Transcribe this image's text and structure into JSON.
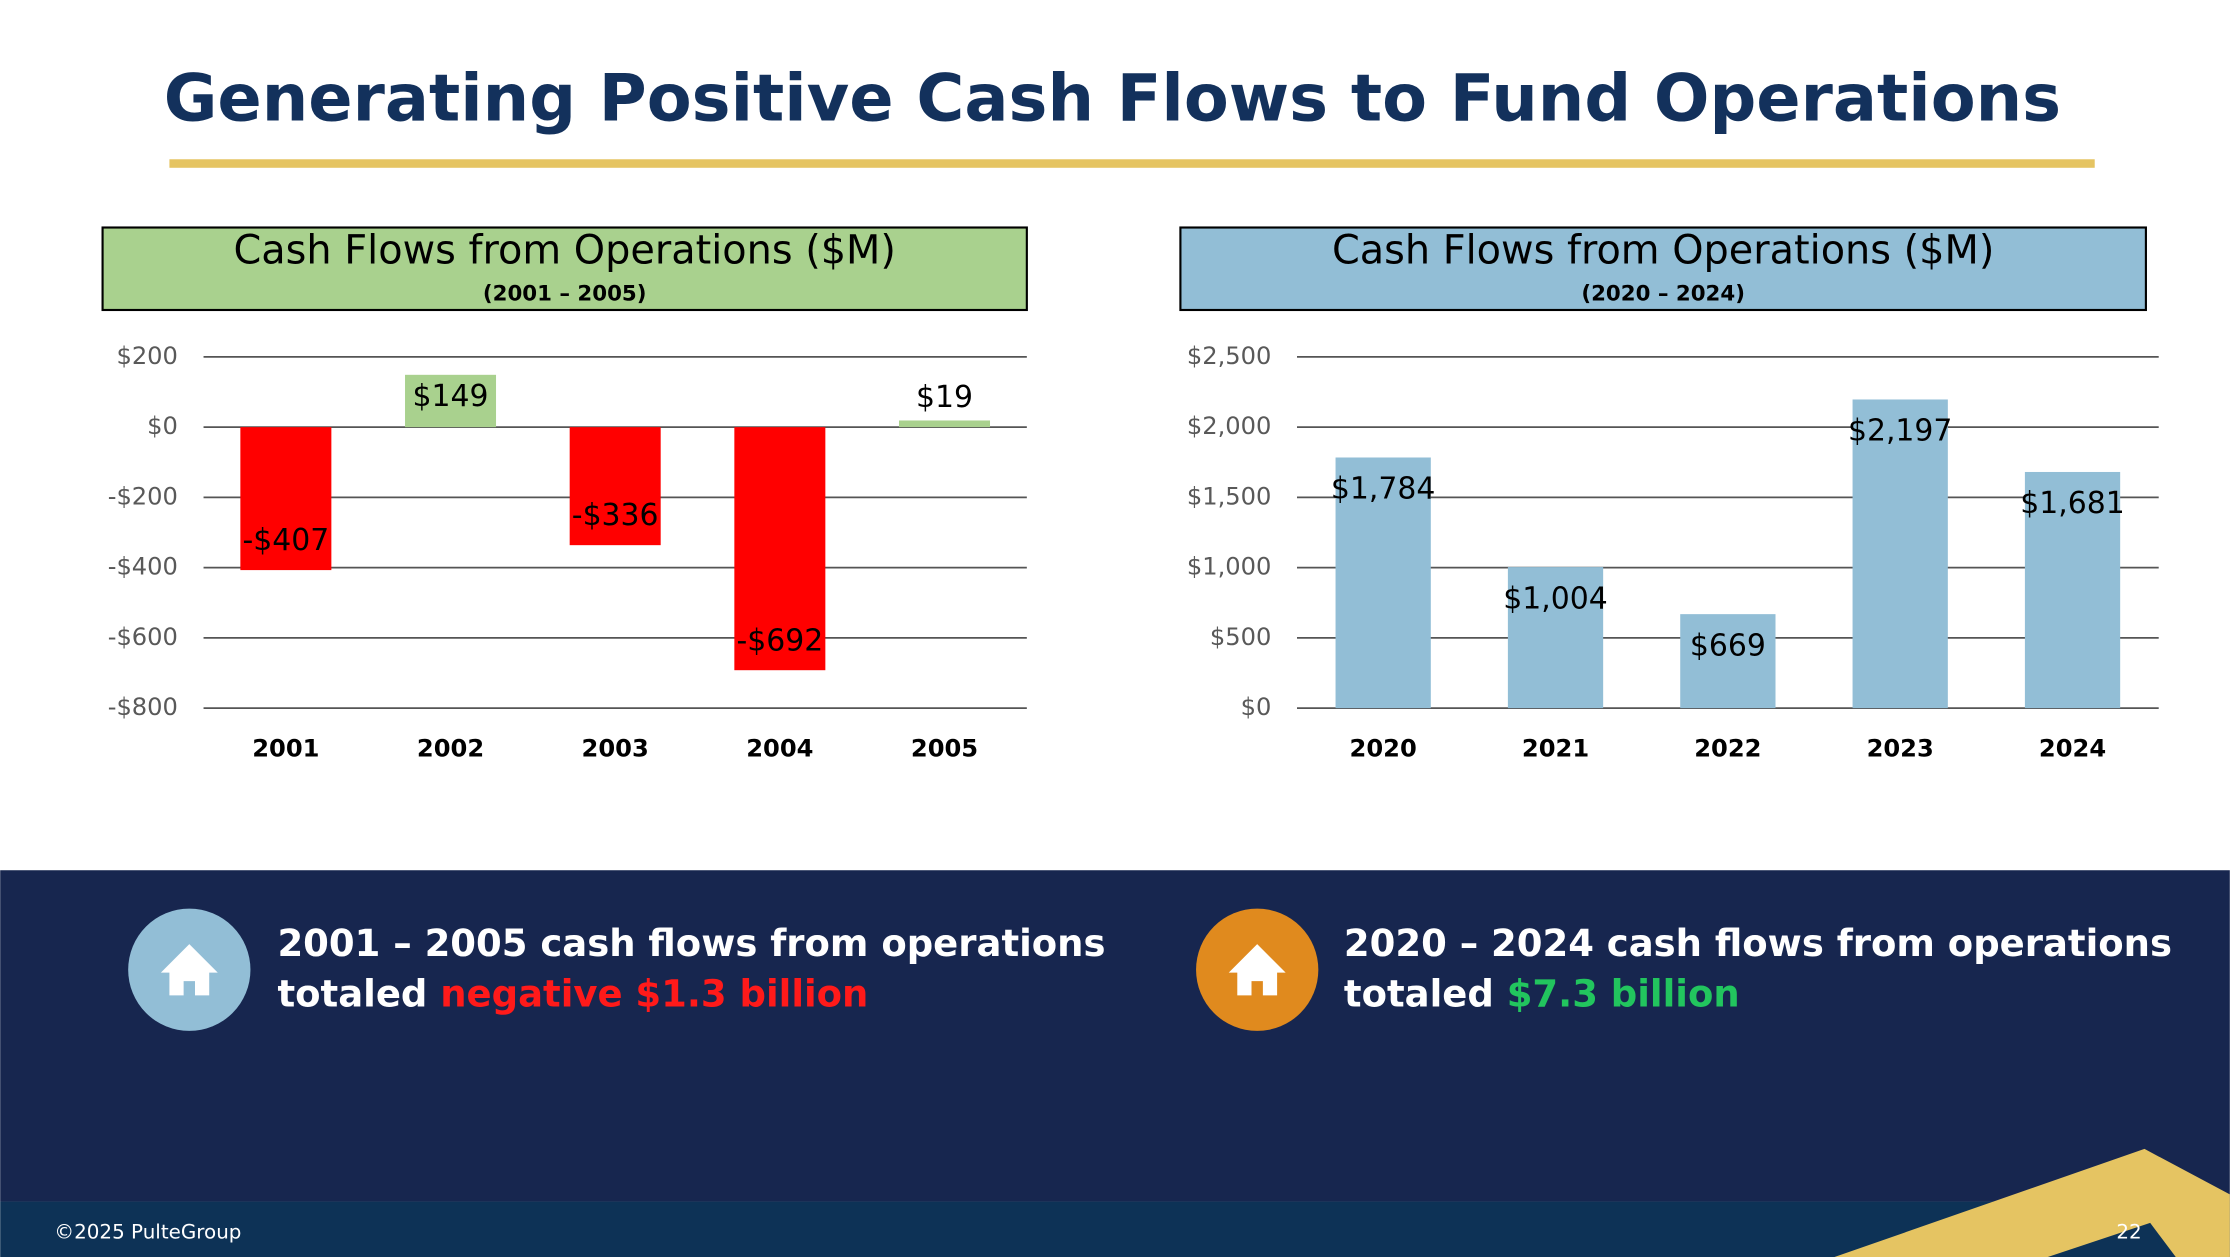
{
  "title": "Generating Positive Cash Flows to Fund Operations",
  "chart_data": [
    {
      "type": "bar",
      "title": "Cash Flows from Operations ($M)",
      "subtitle": "(2001 – 2005)",
      "categories": [
        "2001",
        "2002",
        "2003",
        "2004",
        "2005"
      ],
      "values": [
        -407,
        149,
        -336,
        -692,
        19
      ],
      "value_labels": [
        "-$407",
        "$149",
        "-$336",
        "-$692",
        "$19"
      ],
      "colors": [
        "#ff0000",
        "#a9d18e",
        "#ff0000",
        "#ff0000",
        "#a9d18e"
      ],
      "header_color": "#a9d18e",
      "ylim": [
        -800,
        200
      ],
      "yticks": [
        {
          "value": -800,
          "label": "-$800"
        },
        {
          "value": -600,
          "label": "-$600"
        },
        {
          "value": -400,
          "label": "-$400"
        },
        {
          "value": -200,
          "label": "-$200"
        },
        {
          "value": 0,
          "label": "$0"
        },
        {
          "value": 200,
          "label": "$200"
        }
      ],
      "grid": true
    },
    {
      "type": "bar",
      "title": "Cash Flows from Operations ($M)",
      "subtitle": "(2020 – 2024)",
      "categories": [
        "2020",
        "2021",
        "2022",
        "2023",
        "2024"
      ],
      "values": [
        1784,
        1004,
        669,
        2197,
        1681
      ],
      "value_labels": [
        "$1,784",
        "$1,004",
        "$669",
        "$2,197",
        "$1,681"
      ],
      "colors": [
        "#92bed6",
        "#92bed6",
        "#92bed6",
        "#92bed6",
        "#92bed6"
      ],
      "header_color": "#92bed6",
      "ylim": [
        0,
        2500
      ],
      "yticks": [
        {
          "value": 0,
          "label": "$0"
        },
        {
          "value": 500,
          "label": "$500"
        },
        {
          "value": 1000,
          "label": "$1,000"
        },
        {
          "value": 1500,
          "label": "$1,500"
        },
        {
          "value": 2000,
          "label": "$2,000"
        },
        {
          "value": 2500,
          "label": "$2,500"
        }
      ],
      "grid": true
    }
  ],
  "callouts": [
    {
      "line1": "2001 – 2005 cash flows from operations",
      "line2": "totaled",
      "highlight": "negative $1.3 billion"
    },
    {
      "line1": "2020 – 2024 cash flows from operations",
      "line2": "totaled",
      "highlight": "$7.3 billion"
    }
  ],
  "footer": {
    "copyright": "©2025 PulteGroup",
    "page": "22"
  }
}
